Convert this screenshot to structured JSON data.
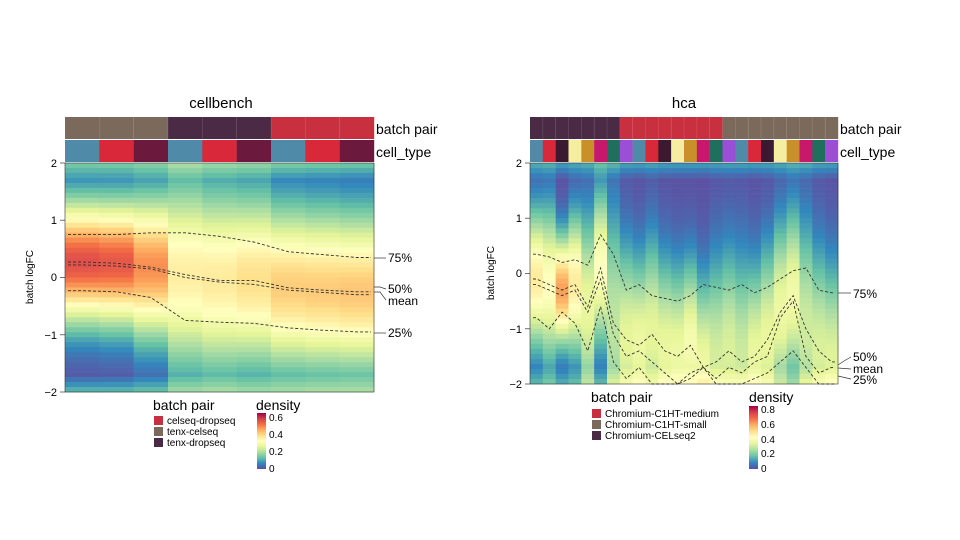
{
  "chart_data": [
    {
      "type": "heatmap",
      "title": "cellbench",
      "ylabel": "batch logFC",
      "ylim": [
        -2,
        2
      ],
      "y_ticks": [
        "2",
        "1",
        "0",
        "−1",
        "−2"
      ],
      "annotation_labels": {
        "batch_pair": "batch pair",
        "cell_type": "cell_type"
      },
      "columns": 9,
      "batch_pair_per_column": [
        "tenx-celseq",
        "tenx-celseq",
        "tenx-celseq",
        "tenx-dropseq",
        "tenx-dropseq",
        "tenx-dropseq",
        "celseq-dropseq",
        "celseq-dropseq",
        "celseq-dropseq"
      ],
      "cell_type_color_per_column": [
        "#4f8aa8",
        "#d9283a",
        "#6b1a3e",
        "#4f8aa8",
        "#d9283a",
        "#6b1a3e",
        "#4f8aa8",
        "#d9283a",
        "#6b1a3e"
      ],
      "batch_pair_legend": [
        {
          "label": "celseq-dropseq",
          "color": "#c8303f"
        },
        {
          "label": "tenx-celseq",
          "color": "#7b6a5b"
        },
        {
          "label": "tenx-dropseq",
          "color": "#4a2a45"
        }
      ],
      "density_legend": {
        "title": "density",
        "ticks": [
          "0.6",
          "0.4",
          "0.2",
          "0"
        ],
        "max": 0.65
      },
      "column_stats": {
        "q75": [
          0.75,
          0.75,
          0.78,
          0.78,
          0.72,
          0.62,
          0.45,
          0.4,
          0.35
        ],
        "q50": [
          0.27,
          0.25,
          0.18,
          0.05,
          -0.05,
          -0.05,
          -0.18,
          -0.22,
          -0.25
        ],
        "mean": [
          0.22,
          0.2,
          0.15,
          0.0,
          -0.08,
          -0.12,
          -0.22,
          -0.26,
          -0.3
        ],
        "q25": [
          -0.23,
          -0.25,
          -0.35,
          -0.75,
          -0.78,
          -0.8,
          -0.88,
          -0.92,
          -0.95
        ]
      },
      "quantile_labels": {
        "q75": "75%",
        "q50": "50%",
        "mean": "mean",
        "q25": "25%"
      }
    },
    {
      "type": "heatmap",
      "title": "hca",
      "ylabel": "batch logFC",
      "ylim": [
        -2,
        2
      ],
      "y_ticks": [
        "2",
        "1",
        "0",
        "−1",
        "−2"
      ],
      "annotation_labels": {
        "batch_pair": "batch pair",
        "cell_type": "cell_type"
      },
      "columns": 24,
      "batch_pair_per_column": [
        "Chromium-CELseq2",
        "Chromium-CELseq2",
        "Chromium-CELseq2",
        "Chromium-CELseq2",
        "Chromium-CELseq2",
        "Chromium-CELseq2",
        "Chromium-CELseq2",
        "Chromium-C1HT-medium",
        "Chromium-C1HT-medium",
        "Chromium-C1HT-medium",
        "Chromium-C1HT-medium",
        "Chromium-C1HT-medium",
        "Chromium-C1HT-medium",
        "Chromium-C1HT-medium",
        "Chromium-C1HT-medium",
        "Chromium-C1HT-small",
        "Chromium-C1HT-small",
        "Chromium-C1HT-small",
        "Chromium-C1HT-small",
        "Chromium-C1HT-small",
        "Chromium-C1HT-small",
        "Chromium-C1HT-small",
        "Chromium-C1HT-small",
        "Chromium-C1HT-small"
      ],
      "cell_type_color_per_column": [
        "#4f8aa8",
        "#d9283a",
        "#3a1a30",
        "#f5eea0",
        "#c9902a",
        "#c8186c",
        "#1e6f5c",
        "#9b4fd6",
        "#4f8aa8",
        "#d9283a",
        "#3a1a30",
        "#f5eea0",
        "#c9902a",
        "#c8186c",
        "#1e6f5c",
        "#9b4fd6",
        "#4f8aa8",
        "#d9283a",
        "#3a1a30",
        "#f5eea0",
        "#c9902a",
        "#c8186c",
        "#1e6f5c",
        "#9b4fd6"
      ],
      "batch_pair_legend": [
        {
          "label": "Chromium-C1HT-medium",
          "color": "#c8303f"
        },
        {
          "label": "Chromium-C1HT-small",
          "color": "#7b6a5b"
        },
        {
          "label": "Chromium-CELseq2",
          "color": "#4a2a45"
        }
      ],
      "density_legend": {
        "title": "density",
        "ticks": [
          "0.8",
          "0.6",
          "0.4",
          "0.2",
          "0"
        ],
        "max": 0.85
      },
      "column_stats": {
        "q75": [
          0.35,
          0.3,
          0.2,
          0.25,
          0.15,
          0.7,
          0.35,
          -0.3,
          -0.2,
          -0.4,
          -0.45,
          -0.5,
          -0.4,
          -0.2,
          -0.25,
          -0.3,
          -0.2,
          -0.35,
          -0.25,
          -0.1,
          0.05,
          0.1,
          -0.3,
          -0.35
        ],
        "q50": [
          -0.1,
          -0.2,
          -0.3,
          -0.2,
          -0.6,
          0.1,
          -0.9,
          -1.2,
          -1.3,
          -1.1,
          -1.4,
          -1.5,
          -1.3,
          -1.7,
          -1.6,
          -1.4,
          -1.6,
          -1.5,
          -1.2,
          -0.7,
          -0.4,
          -1.0,
          -1.4,
          -1.6
        ],
        "mean": [
          -0.2,
          -0.3,
          -0.4,
          -0.3,
          -0.7,
          -0.1,
          -1.1,
          -1.5,
          -1.4,
          -1.6,
          -1.8,
          -2.0,
          -1.9,
          -1.7,
          -1.9,
          -1.7,
          -1.8,
          -1.6,
          -1.5,
          -0.8,
          -0.5,
          -1.5,
          -1.8,
          -1.7
        ],
        "q25": [
          -0.8,
          -1.0,
          -0.7,
          -0.9,
          -1.4,
          -0.6,
          -1.6,
          -1.9,
          -1.7,
          -2.0,
          -2.0,
          -2.0,
          -1.8,
          -1.7,
          -2.0,
          -2.0,
          -2.0,
          -1.9,
          -1.8,
          -1.6,
          -1.4,
          -1.7,
          -2.0,
          -2.0
        ]
      },
      "quantile_labels": {
        "q75": "75%",
        "q50": "50%",
        "mean": "mean",
        "q25": "25%"
      }
    }
  ]
}
